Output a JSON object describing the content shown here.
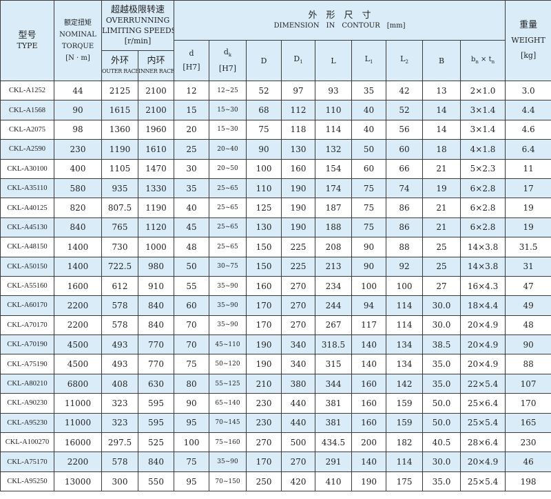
{
  "colors": {
    "header_bg": "#d9ecf8",
    "alt_row_bg": "#d9ecf8",
    "border": "#3a3a3a"
  },
  "header": {
    "type_cn": "型号",
    "type_en": "TYPE",
    "torque_cn": "额定扭矩",
    "torque_en1": "NOMINAL",
    "torque_en2": "TORQUE",
    "torque_unit": "[N · m]",
    "speed_cn": "超越极限转速",
    "speed_en1": "OVERRUNNING",
    "speed_en2": "LIMITING SPEEDS",
    "speed_unit": "[r/min]",
    "outer_cn": "外环",
    "outer_en": "OUTER RACE",
    "inner_cn": "内环",
    "inner_en": "INNER RACE",
    "dim_cn": "外　形　尺　寸",
    "dim_en": "DIMENSION　IN　CONTOUR　[mm]",
    "d": "d",
    "d_tol": "[H7]",
    "dk": "d",
    "dk_sub": "k",
    "dk_tol": "[H7]",
    "D": "D",
    "D1": "D",
    "D1_sub": "1",
    "L": "L",
    "L1": "L",
    "L1_sub": "1",
    "L2": "L",
    "L2_sub": "2",
    "B": "B",
    "bt": "b",
    "bt_sub1": "n",
    "bt_x": " × t",
    "bt_sub2": "n",
    "weight_cn": "重量",
    "weight_en": "WEIGHT",
    "weight_unit": "[kg]"
  },
  "rows": [
    [
      "CKL-A1252",
      "44",
      "2125",
      "2100",
      "12",
      "12~25",
      "52",
      "97",
      "93",
      "35",
      "42",
      "13",
      "2×1.0",
      "3.0"
    ],
    [
      "CKL-A1568",
      "90",
      "1615",
      "2100",
      "15",
      "15~30",
      "68",
      "112",
      "110",
      "40",
      "52",
      "14",
      "3×1.4",
      "4.4"
    ],
    [
      "CKL-A2075",
      "98",
      "1360",
      "1960",
      "20",
      "15~30",
      "75",
      "118",
      "114",
      "40",
      "56",
      "14",
      "3×1.4",
      "4.6"
    ],
    [
      "CKL-A2590",
      "230",
      "1190",
      "1610",
      "25",
      "20~40",
      "90",
      "130",
      "132",
      "50",
      "60",
      "18",
      "4×1.8",
      "6.4"
    ],
    [
      "CKL-A30100",
      "400",
      "1105",
      "1470",
      "30",
      "20~50",
      "100",
      "160",
      "154",
      "60",
      "66",
      "21",
      "5×2.3",
      "11"
    ],
    [
      "CKL-A35110",
      "580",
      "935",
      "1330",
      "35",
      "25~65",
      "110",
      "190",
      "174",
      "75",
      "74",
      "19",
      "6×2.8",
      "17"
    ],
    [
      "CKL-A40125",
      "820",
      "807.5",
      "1190",
      "40",
      "25~65",
      "125",
      "190",
      "187",
      "75",
      "86",
      "21",
      "6×2.8",
      "19"
    ],
    [
      "CKL-A45130",
      "840",
      "765",
      "1120",
      "45",
      "25~65",
      "130",
      "190",
      "188",
      "75",
      "86",
      "21",
      "6×2.8",
      "19"
    ],
    [
      "CKL-A48150",
      "1400",
      "730",
      "1000",
      "48",
      "25~65",
      "150",
      "225",
      "208",
      "90",
      "88",
      "25",
      "14×3.8",
      "31.5"
    ],
    [
      "CKL-A50150",
      "1400",
      "722.5",
      "980",
      "50",
      "30~75",
      "150",
      "225",
      "213",
      "90",
      "92",
      "25",
      "14×3.8",
      "31"
    ],
    [
      "CKL-A55160",
      "1600",
      "612",
      "910",
      "55",
      "35~90",
      "160",
      "270",
      "234",
      "100",
      "100",
      "27",
      "16×4.3",
      "47"
    ],
    [
      "CKL-A60170",
      "2200",
      "578",
      "840",
      "60",
      "35~90",
      "170",
      "270",
      "244",
      "94",
      "114",
      "30.0",
      "18×4.4",
      "49"
    ],
    [
      "CKL-A70170",
      "2200",
      "578",
      "840",
      "70",
      "35~90",
      "170",
      "270",
      "267",
      "117",
      "114",
      "30.0",
      "20×4.9",
      "48"
    ],
    [
      "CKL-A70190",
      "4500",
      "493",
      "770",
      "70",
      "45~110",
      "190",
      "340",
      "318.5",
      "140",
      "134",
      "38.5",
      "20×4.9",
      "90"
    ],
    [
      "CKL-A75190",
      "4500",
      "493",
      "770",
      "75",
      "50~120",
      "190",
      "340",
      "315",
      "140",
      "134",
      "35.0",
      "20×4.9",
      "88"
    ],
    [
      "CKL-A80210",
      "6800",
      "408",
      "630",
      "80",
      "55~125",
      "210",
      "380",
      "344",
      "160",
      "142",
      "35.0",
      "22×5.4",
      "107"
    ],
    [
      "CKL-A90230",
      "11000",
      "323",
      "595",
      "90",
      "65~140",
      "230",
      "440",
      "381",
      "160",
      "159",
      "50.0",
      "25×6.4",
      "170"
    ],
    [
      "CKL-A95230",
      "11000",
      "323",
      "595",
      "95",
      "70~145",
      "230",
      "440",
      "381",
      "160",
      "159",
      "50.0",
      "25×5.4",
      "165"
    ],
    [
      "CKL-A100270",
      "16000",
      "297.5",
      "525",
      "100",
      "75~160",
      "270",
      "500",
      "434.5",
      "200",
      "182",
      "40.5",
      "28×6.4",
      "230"
    ],
    [
      "CKL-A75170",
      "2200",
      "578",
      "840",
      "75",
      "35~90",
      "170",
      "270",
      "291",
      "140",
      "114",
      "30.0",
      "20×4.9",
      "46"
    ],
    [
      "CKL-A95250",
      "13000",
      "300",
      "550",
      "95",
      "70~150",
      "250",
      "420",
      "410",
      "190",
      "175",
      "35.0",
      "25×5.4",
      "198"
    ]
  ]
}
